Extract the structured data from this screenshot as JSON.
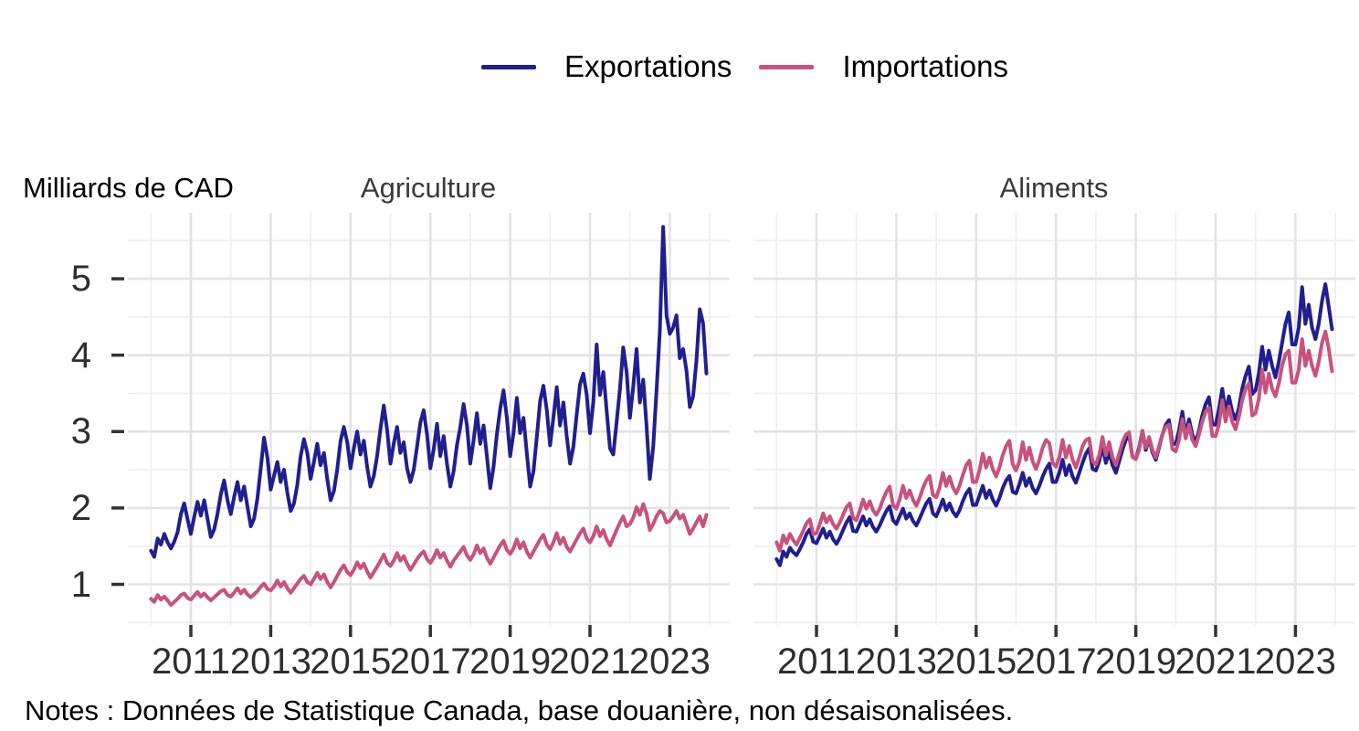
{
  "page": {
    "background": "#ffffff"
  },
  "legend": {
    "items": [
      {
        "label": "Exportations",
        "color": "#211e8f"
      },
      {
        "label": "Importations",
        "color": "#c8527d"
      }
    ]
  },
  "y_axis_title": "Milliards de CAD",
  "caption": "Notes : Données de Statistique Canada, base douanière, non désaisonalisées.",
  "chart_data": [
    {
      "type": "line",
      "title": "Agriculture",
      "x_unit": "month",
      "x_start": "2010-01",
      "x_end": "2023-12",
      "x_tick_labels": [
        "2011",
        "2013",
        "2015",
        "2017",
        "2019",
        "2021",
        "2023"
      ],
      "y_ticks": [
        1,
        2,
        3,
        4,
        5
      ],
      "ylim": [
        0.47,
        5.86
      ],
      "grid": "on",
      "legend_position": "top",
      "series": [
        {
          "name": "Exportations",
          "color": "#211e8f",
          "values": [
            1.44,
            1.36,
            1.6,
            1.52,
            1.66,
            1.55,
            1.47,
            1.56,
            1.68,
            1.92,
            2.06,
            1.85,
            1.66,
            1.88,
            2.08,
            1.9,
            2.1,
            1.86,
            1.62,
            1.72,
            1.92,
            2.18,
            2.36,
            2.1,
            1.92,
            2.14,
            2.34,
            2.1,
            2.28,
            2.02,
            1.76,
            1.86,
            2.12,
            2.52,
            2.92,
            2.66,
            2.24,
            2.42,
            2.6,
            2.34,
            2.5,
            2.2,
            1.96,
            2.06,
            2.3,
            2.68,
            2.9,
            2.72,
            2.38,
            2.6,
            2.84,
            2.56,
            2.72,
            2.38,
            2.1,
            2.22,
            2.5,
            2.88,
            3.06,
            2.86,
            2.52,
            2.78,
            3.0,
            2.7,
            2.88,
            2.54,
            2.28,
            2.42,
            2.68,
            3.04,
            3.34,
            3.02,
            2.58,
            2.84,
            3.06,
            2.72,
            2.86,
            2.52,
            2.34,
            2.5,
            2.8,
            3.12,
            3.28,
            2.96,
            2.52,
            2.76,
            3.1,
            2.68,
            2.94,
            2.58,
            2.28,
            2.48,
            2.82,
            3.06,
            3.36,
            3.08,
            2.58,
            2.88,
            3.24,
            2.84,
            3.08,
            2.68,
            2.26,
            2.54,
            2.96,
            3.3,
            3.54,
            3.18,
            2.68,
            2.98,
            3.44,
            2.98,
            3.18,
            2.72,
            2.28,
            2.48,
            2.92,
            3.4,
            3.6,
            3.28,
            2.82,
            3.18,
            3.58,
            3.08,
            3.38,
            2.94,
            2.58,
            2.8,
            3.22,
            3.62,
            3.76,
            3.48,
            2.98,
            3.38,
            4.14,
            3.48,
            3.78,
            3.28,
            2.78,
            2.7,
            3.12,
            3.56,
            4.1,
            3.78,
            3.18,
            3.58,
            4.08,
            3.38,
            3.68,
            3.08,
            2.38,
            2.8,
            3.52,
            4.32,
            5.68,
            4.52,
            4.28,
            4.36,
            4.52,
            3.96,
            4.08,
            3.8,
            3.32,
            3.46,
            3.92,
            4.6,
            4.42,
            3.76
          ]
        },
        {
          "name": "Importations",
          "color": "#c8527d",
          "values": [
            0.81,
            0.77,
            0.86,
            0.8,
            0.84,
            0.79,
            0.73,
            0.77,
            0.81,
            0.86,
            0.88,
            0.82,
            0.8,
            0.85,
            0.9,
            0.84,
            0.88,
            0.83,
            0.79,
            0.83,
            0.87,
            0.91,
            0.93,
            0.86,
            0.84,
            0.89,
            0.95,
            0.88,
            0.93,
            0.87,
            0.83,
            0.87,
            0.91,
            0.97,
            1.01,
            0.94,
            0.92,
            0.97,
            1.05,
            0.97,
            1.03,
            0.95,
            0.89,
            0.95,
            1.01,
            1.07,
            1.11,
            1.03,
            1.0,
            1.07,
            1.15,
            1.07,
            1.13,
            1.03,
            0.96,
            1.03,
            1.11,
            1.19,
            1.25,
            1.16,
            1.12,
            1.19,
            1.29,
            1.21,
            1.27,
            1.17,
            1.09,
            1.16,
            1.23,
            1.31,
            1.39,
            1.28,
            1.24,
            1.31,
            1.41,
            1.31,
            1.37,
            1.27,
            1.19,
            1.26,
            1.33,
            1.39,
            1.43,
            1.33,
            1.28,
            1.35,
            1.45,
            1.35,
            1.41,
            1.31,
            1.23,
            1.31,
            1.37,
            1.43,
            1.49,
            1.38,
            1.32,
            1.39,
            1.51,
            1.41,
            1.47,
            1.35,
            1.27,
            1.35,
            1.43,
            1.51,
            1.57,
            1.45,
            1.4,
            1.47,
            1.59,
            1.47,
            1.55,
            1.43,
            1.35,
            1.43,
            1.51,
            1.59,
            1.65,
            1.52,
            1.46,
            1.55,
            1.67,
            1.53,
            1.61,
            1.49,
            1.43,
            1.51,
            1.59,
            1.67,
            1.73,
            1.6,
            1.55,
            1.63,
            1.76,
            1.63,
            1.71,
            1.59,
            1.51,
            1.61,
            1.71,
            1.81,
            1.89,
            1.76,
            1.79,
            1.87,
            2.01,
            1.91,
            2.05,
            1.93,
            1.71,
            1.79,
            1.89,
            1.96,
            1.93,
            1.81,
            1.83,
            1.89,
            1.96,
            1.86,
            1.91,
            1.79,
            1.66,
            1.73,
            1.81,
            1.89,
            1.76,
            1.91
          ]
        }
      ]
    },
    {
      "type": "line",
      "title": "Aliments",
      "x_unit": "month",
      "x_start": "2010-01",
      "x_end": "2023-12",
      "x_tick_labels": [
        "2011",
        "2013",
        "2015",
        "2017",
        "2019",
        "2021",
        "2023"
      ],
      "y_ticks": [
        1,
        2,
        3,
        4,
        5
      ],
      "ylim": [
        0.47,
        5.86
      ],
      "grid": "on",
      "legend_position": "top",
      "series": [
        {
          "name": "Exportations",
          "color": "#211e8f",
          "values": [
            1.33,
            1.25,
            1.43,
            1.36,
            1.48,
            1.42,
            1.38,
            1.46,
            1.55,
            1.66,
            1.72,
            1.56,
            1.54,
            1.63,
            1.73,
            1.61,
            1.69,
            1.59,
            1.53,
            1.61,
            1.71,
            1.81,
            1.88,
            1.7,
            1.69,
            1.79,
            1.89,
            1.77,
            1.85,
            1.75,
            1.69,
            1.77,
            1.87,
            1.96,
            2.02,
            1.84,
            1.79,
            1.89,
            1.99,
            1.86,
            1.93,
            1.83,
            1.77,
            1.86,
            1.96,
            2.06,
            2.12,
            1.93,
            1.89,
            1.99,
            2.11,
            1.97,
            2.06,
            1.95,
            1.89,
            1.97,
            2.09,
            2.19,
            2.25,
            2.04,
            2.04,
            2.16,
            2.29,
            2.13,
            2.23,
            2.11,
            2.03,
            2.13,
            2.26,
            2.36,
            2.42,
            2.21,
            2.19,
            2.31,
            2.46,
            2.29,
            2.39,
            2.26,
            2.19,
            2.29,
            2.41,
            2.51,
            2.58,
            2.34,
            2.34,
            2.46,
            2.63,
            2.43,
            2.56,
            2.41,
            2.33,
            2.46,
            2.59,
            2.71,
            2.78,
            2.51,
            2.49,
            2.61,
            2.81,
            2.59,
            2.73,
            2.56,
            2.46,
            2.61,
            2.76,
            2.89,
            2.95,
            2.67,
            2.64,
            2.79,
            3.01,
            2.76,
            2.91,
            2.73,
            2.63,
            2.79,
            2.96,
            3.09,
            3.15,
            2.84,
            2.84,
            3.01,
            3.26,
            2.96,
            3.16,
            2.96,
            2.86,
            3.01,
            3.21,
            3.36,
            3.45,
            3.09,
            3.09,
            3.29,
            3.56,
            3.26,
            3.46,
            3.26,
            3.16,
            3.31,
            3.56,
            3.73,
            3.85,
            3.49,
            3.54,
            3.76,
            4.11,
            3.81,
            4.06,
            3.86,
            3.71,
            3.91,
            4.16,
            4.41,
            4.56,
            4.14,
            4.14,
            4.36,
            4.89,
            4.41,
            4.66,
            4.36,
            4.21,
            4.41,
            4.71,
            4.93,
            4.64,
            4.34
          ]
        },
        {
          "name": "Importations",
          "color": "#c8527d",
          "values": [
            1.55,
            1.44,
            1.64,
            1.54,
            1.66,
            1.58,
            1.52,
            1.61,
            1.7,
            1.8,
            1.85,
            1.66,
            1.67,
            1.79,
            1.93,
            1.81,
            1.89,
            1.79,
            1.73,
            1.81,
            1.91,
            2.01,
            2.06,
            1.87,
            1.84,
            1.96,
            2.11,
            1.99,
            2.09,
            1.97,
            1.91,
            1.99,
            2.11,
            2.21,
            2.28,
            2.04,
            1.99,
            2.11,
            2.29,
            2.13,
            2.23,
            2.11,
            2.03,
            2.13,
            2.26,
            2.36,
            2.42,
            2.17,
            2.14,
            2.26,
            2.46,
            2.29,
            2.41,
            2.27,
            2.19,
            2.29,
            2.43,
            2.56,
            2.62,
            2.34,
            2.34,
            2.49,
            2.71,
            2.53,
            2.66,
            2.51,
            2.41,
            2.53,
            2.69,
            2.81,
            2.88,
            2.57,
            2.49,
            2.61,
            2.86,
            2.63,
            2.79,
            2.61,
            2.51,
            2.63,
            2.79,
            2.89,
            2.85,
            2.59,
            2.54,
            2.66,
            2.89,
            2.66,
            2.81,
            2.63,
            2.53,
            2.66,
            2.81,
            2.89,
            2.91,
            2.61,
            2.57,
            2.69,
            2.93,
            2.69,
            2.86,
            2.66,
            2.56,
            2.71,
            2.86,
            2.96,
            2.99,
            2.67,
            2.64,
            2.76,
            3.01,
            2.79,
            2.93,
            2.76,
            2.66,
            2.81,
            2.96,
            3.06,
            3.09,
            2.77,
            2.74,
            2.89,
            3.16,
            2.91,
            3.09,
            2.89,
            2.81,
            2.96,
            3.13,
            3.26,
            3.31,
            2.94,
            2.94,
            3.09,
            3.41,
            3.13,
            3.33,
            3.13,
            3.03,
            3.19,
            3.41,
            3.56,
            3.63,
            3.21,
            3.24,
            3.43,
            3.81,
            3.51,
            3.76,
            3.56,
            3.46,
            3.63,
            3.86,
            4.01,
            4.06,
            3.64,
            3.64,
            3.81,
            4.21,
            3.86,
            4.06,
            3.86,
            3.73,
            3.91,
            4.16,
            4.31,
            4.09,
            3.79
          ]
        }
      ]
    }
  ]
}
